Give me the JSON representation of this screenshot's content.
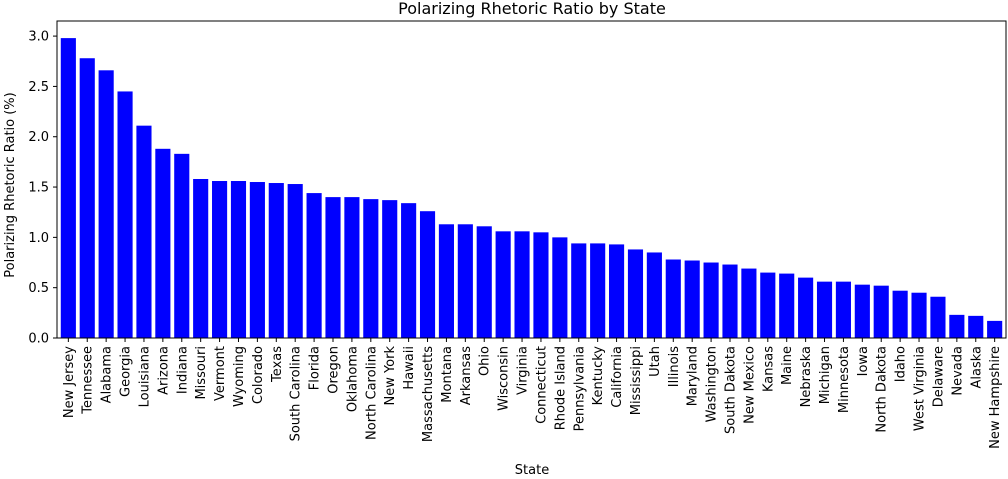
{
  "chart_data": {
    "type": "bar",
    "title": "Polarizing Rhetoric Ratio by State",
    "xlabel": "State",
    "ylabel": "Polarizing Rhetoric Ratio (%)",
    "ylim": [
      0,
      3.15
    ],
    "yticks": [
      "0.0",
      "0.5",
      "1.0",
      "1.5",
      "2.0",
      "2.5",
      "3.0"
    ],
    "grid": false,
    "bar_color": "#0000ff",
    "categories": [
      "New Jersey",
      "Tennessee",
      "Alabama",
      "Georgia",
      "Louisiana",
      "Arizona",
      "Indiana",
      "Missouri",
      "Vermont",
      "Wyoming",
      "Colorado",
      "Texas",
      "South Carolina",
      "Florida",
      "Oregon",
      "Oklahoma",
      "North Carolina",
      "New York",
      "Hawaii",
      "Massachusetts",
      "Montana",
      "Arkansas",
      "Ohio",
      "Wisconsin",
      "Virginia",
      "Connecticut",
      "Rhode Island",
      "Pennsylvania",
      "Kentucky",
      "California",
      "Mississippi",
      "Utah",
      "Illinois",
      "Maryland",
      "Washington",
      "South Dakota",
      "New Mexico",
      "Kansas",
      "Maine",
      "Nebraska",
      "Michigan",
      "Minnesota",
      "Iowa",
      "North Dakota",
      "Idaho",
      "West Virginia",
      "Delaware",
      "Nevada",
      "Alaska",
      "New Hampshire"
    ],
    "values": [
      2.98,
      2.78,
      2.66,
      2.45,
      2.11,
      1.88,
      1.83,
      1.58,
      1.56,
      1.56,
      1.55,
      1.54,
      1.53,
      1.44,
      1.4,
      1.4,
      1.38,
      1.37,
      1.34,
      1.26,
      1.13,
      1.13,
      1.11,
      1.06,
      1.06,
      1.05,
      1.0,
      0.94,
      0.94,
      0.93,
      0.88,
      0.85,
      0.78,
      0.77,
      0.75,
      0.73,
      0.69,
      0.65,
      0.64,
      0.6,
      0.56,
      0.56,
      0.53,
      0.52,
      0.47,
      0.45,
      0.41,
      0.23,
      0.22,
      0.17
    ]
  }
}
